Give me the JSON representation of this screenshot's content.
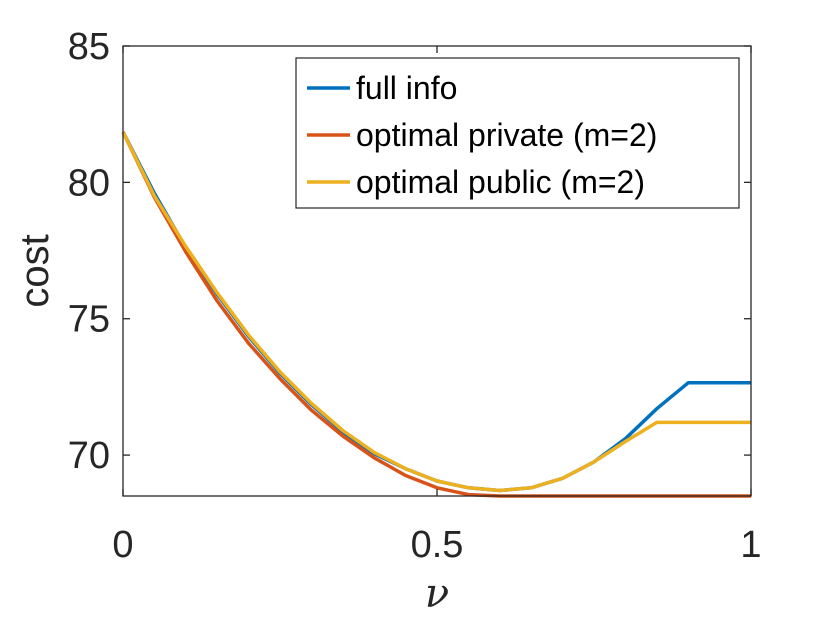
{
  "chart_data": {
    "type": "line",
    "title": "",
    "xlabel": "ν",
    "ylabel": "cost",
    "xlim": [
      0,
      1
    ],
    "ylim": [
      68.5,
      85
    ],
    "xticks": [
      0,
      0.5,
      1
    ],
    "xtick_labels": [
      "0",
      "0.5",
      "1"
    ],
    "yticks": [
      70,
      75,
      80,
      85
    ],
    "ytick_labels": [
      "70",
      "75",
      "80",
      "85"
    ],
    "grid": false,
    "legend_position": "top-right",
    "x": [
      0,
      0.05,
      0.1,
      0.15,
      0.2,
      0.25,
      0.3,
      0.35,
      0.4,
      0.45,
      0.5,
      0.55,
      0.6,
      0.65,
      0.7,
      0.75,
      0.8,
      0.85,
      0.9,
      0.95,
      1.0
    ],
    "series": [
      {
        "name": "full info",
        "color": "#0072BD",
        "values": [
          81.85,
          79.6,
          77.6,
          75.9,
          74.35,
          73.0,
          71.85,
          70.85,
          70.05,
          69.5,
          69.05,
          68.8,
          68.7,
          68.8,
          69.15,
          69.75,
          70.6,
          71.7,
          72.65,
          72.65,
          72.65
        ]
      },
      {
        "name": "optimal private (m=2)",
        "color": "#D95319",
        "values": [
          81.85,
          79.45,
          77.45,
          75.65,
          74.1,
          72.8,
          71.65,
          70.7,
          69.9,
          69.25,
          68.8,
          68.55,
          68.5,
          68.5,
          68.5,
          68.5,
          68.5,
          68.5,
          68.5,
          68.5,
          68.5
        ]
      },
      {
        "name": "optimal public (m=2)",
        "color": "#EDB120",
        "values": [
          81.85,
          79.5,
          77.65,
          75.95,
          74.4,
          73.05,
          71.9,
          70.9,
          70.1,
          69.5,
          69.05,
          68.8,
          68.7,
          68.8,
          69.15,
          69.75,
          70.5,
          71.2,
          71.2,
          71.2,
          71.2
        ]
      }
    ]
  }
}
